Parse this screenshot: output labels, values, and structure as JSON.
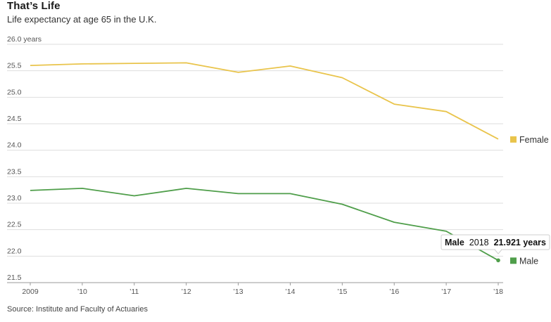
{
  "title": "That’s Life",
  "subtitle": "Life expectancy at age 65 in the U.K.",
  "source": "Source: Institute and Faculty of Actuaries",
  "colors": {
    "female": "#e9c44b",
    "male": "#4f9e4a",
    "grid": "#dedede",
    "axis": "#999999"
  },
  "chart_data": {
    "type": "line",
    "x": [
      2009,
      2010,
      2011,
      2012,
      2013,
      2014,
      2015,
      2016,
      2017,
      2018
    ],
    "x_tick_labels": [
      "2009",
      "’10",
      "’11",
      "’12",
      "’13",
      "’14",
      "’15",
      "’16",
      "’17",
      "’18"
    ],
    "ylim": [
      21.5,
      26.0
    ],
    "y_ticks": [
      21.5,
      22.0,
      22.5,
      23.0,
      23.5,
      24.0,
      24.5,
      25.0,
      25.5,
      26.0
    ],
    "y_tick_labels": [
      "21.5",
      "22.0",
      "22.5",
      "23.0",
      "23.5",
      "24.0",
      "24.5",
      "25.0",
      "25.5",
      "26.0 years"
    ],
    "grid": true,
    "series": [
      {
        "name": "Female",
        "color": "#e9c44b",
        "values": [
          25.6,
          25.63,
          25.64,
          25.65,
          25.47,
          25.59,
          25.37,
          24.87,
          24.73,
          24.21
        ]
      },
      {
        "name": "Male",
        "color": "#4f9e4a",
        "values": [
          23.24,
          23.28,
          23.14,
          23.28,
          23.18,
          23.18,
          22.98,
          22.64,
          22.47,
          21.921
        ]
      }
    ],
    "legend_placement": "right",
    "tooltip": {
      "series": "Male",
      "x_label": "2018",
      "value_label": "21.921 years"
    }
  }
}
